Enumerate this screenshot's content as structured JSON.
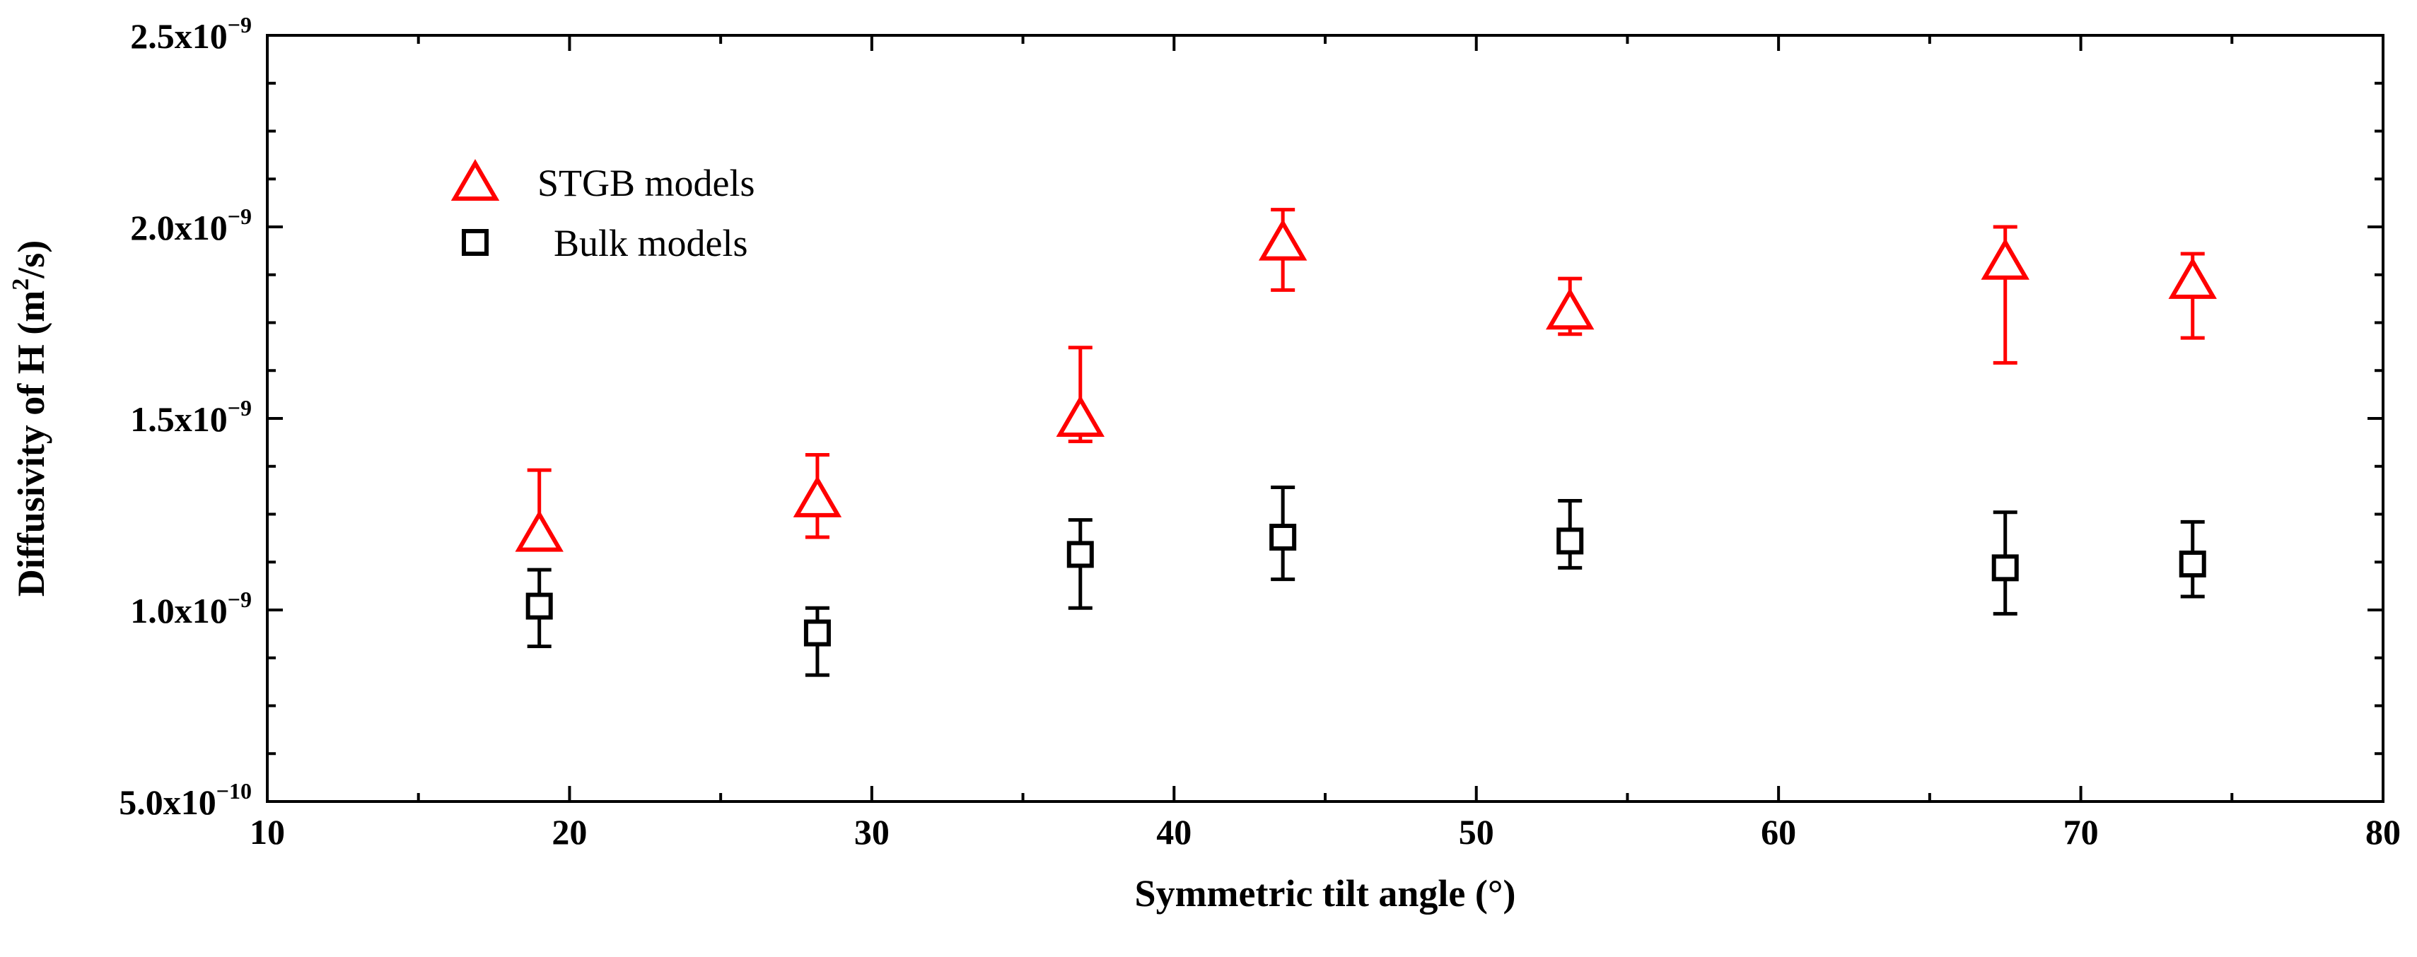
{
  "chart_data": {
    "type": "scatter",
    "xlabel": "Symmetric tilt angle (°)",
    "ylabel": {
      "prefix": "Diffusivity of H (m",
      "sup": "2",
      "suffix": "/s)"
    },
    "xlim": [
      10,
      80
    ],
    "ylim": [
      5e-10,
      2.5e-09
    ],
    "x_ticks": [
      "10",
      "20",
      "30",
      "40",
      "50",
      "60",
      "70",
      "80"
    ],
    "y_ticks": [
      {
        "mantissa": "5.0x10",
        "exp": "−10"
      },
      {
        "mantissa": "1.0x10",
        "exp": "−9"
      },
      {
        "mantissa": "1.5x10",
        "exp": "−9"
      },
      {
        "mantissa": "2.0x10",
        "exp": "−9"
      },
      {
        "mantissa": "2.5x10",
        "exp": "−9"
      }
    ],
    "grid": false,
    "legend_position": "top-left",
    "series": [
      {
        "name": "STGB models",
        "marker": "triangle-open",
        "color": "#ff0000",
        "points": [
          {
            "x": 19.0,
            "y": 1.2e-09,
            "err_low": 1.16e-09,
            "err_high": 1.365e-09
          },
          {
            "x": 28.2,
            "y": 1.29e-09,
            "err_low": 1.19e-09,
            "err_high": 1.405e-09
          },
          {
            "x": 36.9,
            "y": 1.5e-09,
            "err_low": 1.44e-09,
            "err_high": 1.685e-09
          },
          {
            "x": 43.6,
            "y": 1.96e-09,
            "err_low": 1.835e-09,
            "err_high": 2.045e-09
          },
          {
            "x": 53.1,
            "y": 1.78e-09,
            "err_low": 1.72e-09,
            "err_high": 1.865e-09
          },
          {
            "x": 67.5,
            "y": 1.91e-09,
            "err_low": 1.645e-09,
            "err_high": 2e-09
          },
          {
            "x": 73.7,
            "y": 1.86e-09,
            "err_low": 1.71e-09,
            "err_high": 1.93e-09
          }
        ]
      },
      {
        "name": "Bulk models",
        "marker": "square-open",
        "color": "#000000",
        "points": [
          {
            "x": 19.0,
            "y": 1.01e-09,
            "err_low": 9.05e-10,
            "err_high": 1.105e-09
          },
          {
            "x": 28.2,
            "y": 9.4e-10,
            "err_low": 8.3e-10,
            "err_high": 1.005e-09
          },
          {
            "x": 36.9,
            "y": 1.145e-09,
            "err_low": 1.005e-09,
            "err_high": 1.235e-09
          },
          {
            "x": 43.6,
            "y": 1.19e-09,
            "err_low": 1.08e-09,
            "err_high": 1.32e-09
          },
          {
            "x": 53.1,
            "y": 1.18e-09,
            "err_low": 1.11e-09,
            "err_high": 1.285e-09
          },
          {
            "x": 67.5,
            "y": 1.11e-09,
            "err_low": 9.9e-10,
            "err_high": 1.255e-09
          },
          {
            "x": 73.7,
            "y": 1.12e-09,
            "err_low": 1.035e-09,
            "err_high": 1.23e-09
          }
        ]
      }
    ]
  }
}
